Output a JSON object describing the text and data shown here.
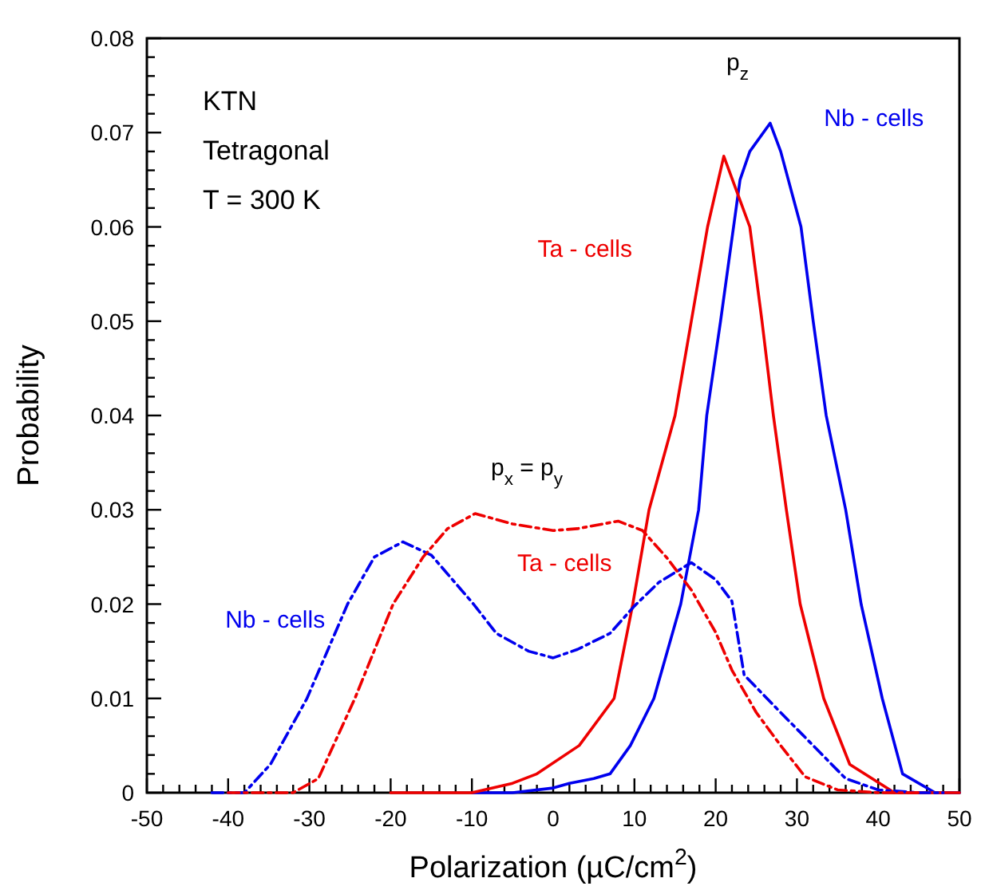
{
  "chart_data": {
    "type": "line",
    "xlabel": "Polarization (µC/cm$^{2}$)",
    "ylabel": "Probability",
    "xlim": [
      -50,
      50
    ],
    "ylim": [
      0,
      0.08
    ],
    "xticks": [
      -50,
      {
        "value": -48,
        "label": null
      },
      {
        "value": -46,
        "label": null
      },
      {
        "value": -44,
        "label": null
      },
      {
        "value": -42,
        "label": null
      },
      -40,
      {
        "value": -38,
        "label": null
      },
      {
        "value": -36,
        "label": null
      },
      {
        "value": -34,
        "label": null
      },
      {
        "value": -32,
        "label": null
      },
      -30,
      {
        "value": -28,
        "label": null
      },
      {
        "value": -26,
        "label": null
      },
      {
        "value": -24,
        "label": null
      },
      {
        "value": -22,
        "label": null
      },
      -20,
      {
        "value": -18,
        "label": null
      },
      {
        "value": -16,
        "label": null
      },
      {
        "value": -14,
        "label": null
      },
      {
        "value": -12,
        "label": null
      },
      -10,
      {
        "value": -8,
        "label": null
      },
      {
        "value": -6,
        "label": null
      },
      {
        "value": -4,
        "label": null
      },
      {
        "value": -2,
        "label": null
      },
      0,
      {
        "value": 2,
        "label": null
      },
      {
        "value": 4,
        "label": null
      },
      {
        "value": 6,
        "label": null
      },
      {
        "value": 8,
        "label": null
      },
      10,
      {
        "value": 12,
        "label": null
      },
      {
        "value": 14,
        "label": null
      },
      {
        "value": 16,
        "label": null
      },
      {
        "value": 18,
        "label": null
      },
      20,
      {
        "value": 22,
        "label": null
      },
      {
        "value": 24,
        "label": null
      },
      {
        "value": 26,
        "label": null
      },
      {
        "value": 28,
        "label": null
      },
      30,
      {
        "value": 32,
        "label": null
      },
      {
        "value": 34,
        "label": null
      },
      {
        "value": 36,
        "label": null
      },
      {
        "value": 38,
        "label": null
      },
      40,
      {
        "value": 42,
        "label": null
      },
      {
        "value": 44,
        "label": null
      },
      {
        "value": 46,
        "label": null
      },
      {
        "value": 48,
        "label": null
      },
      50
    ],
    "yticks": [
      0,
      {
        "value": 0.002,
        "label": null
      },
      {
        "value": 0.004,
        "label": null
      },
      {
        "value": 0.006,
        "label": null
      },
      {
        "value": 0.008,
        "label": null
      },
      0.01,
      {
        "value": 0.012,
        "label": null
      },
      {
        "value": 0.014,
        "label": null
      },
      {
        "value": 0.016,
        "label": null
      },
      {
        "value": 0.018,
        "label": null
      },
      0.02,
      {
        "value": 0.022,
        "label": null
      },
      {
        "value": 0.024,
        "label": null
      },
      {
        "value": 0.026,
        "label": null
      },
      {
        "value": 0.028,
        "label": null
      },
      0.03,
      {
        "value": 0.032,
        "label": null
      },
      {
        "value": 0.034,
        "label": null
      },
      {
        "value": 0.036,
        "label": null
      },
      {
        "value": 0.038,
        "label": null
      },
      0.04,
      {
        "value": 0.042,
        "label": null
      },
      {
        "value": 0.044,
        "label": null
      },
      {
        "value": 0.046,
        "label": null
      },
      {
        "value": 0.048,
        "label": null
      },
      0.05,
      {
        "value": 0.052,
        "label": null
      },
      {
        "value": 0.054,
        "label": null
      },
      {
        "value": 0.056,
        "label": null
      },
      {
        "value": 0.058,
        "label": null
      },
      0.06,
      {
        "value": 0.062,
        "label": null
      },
      {
        "value": 0.064,
        "label": null
      },
      {
        "value": 0.066,
        "label": null
      },
      {
        "value": 0.068,
        "label": null
      },
      0.07,
      {
        "value": 0.072,
        "label": null
      },
      {
        "value": 0.074,
        "label": null
      },
      {
        "value": 0.076,
        "label": null
      },
      {
        "value": 0.078,
        "label": null
      },
      0.08
    ],
    "grid": false,
    "marker": "none",
    "series": [
      {
        "name": "Nb - cells",
        "color": "#0000ee",
        "line_style": "solid",
        "x": [
          -10,
          -5,
          0,
          2,
          5,
          7,
          9.5,
          12.4,
          15.7,
          17.9,
          18.9,
          20.6,
          22.2,
          23,
          24.2,
          26.7,
          28,
          30.5,
          32,
          33.6,
          36,
          37.9,
          40.5,
          43,
          47,
          50
        ],
        "values": [
          0,
          0,
          0.0005,
          0.001,
          0.0015,
          0.002,
          0.005,
          0.01,
          0.02,
          0.03,
          0.04,
          0.05,
          0.06,
          0.065,
          0.068,
          0.071,
          0.068,
          0.06,
          0.05,
          0.04,
          0.03,
          0.02,
          0.01,
          0.002,
          0,
          0
        ]
      },
      {
        "name": "Ta - cells",
        "color": "#ee0000",
        "line_style": "solid",
        "x": [
          -20,
          -10,
          -5,
          -2,
          3.2,
          7.5,
          9.8,
          11.8,
          15,
          17,
          19,
          21,
          24.2,
          25.7,
          27.1,
          28.7,
          30.4,
          33.3,
          36.5,
          42,
          50
        ],
        "values": [
          0,
          0,
          0.001,
          0.002,
          0.005,
          0.01,
          0.02,
          0.03,
          0.04,
          0.05,
          0.06,
          0.0675,
          0.06,
          0.05,
          0.04,
          0.03,
          0.02,
          0.01,
          0.003,
          0,
          0
        ]
      },
      {
        "name": "Nb - cells",
        "color": "#0000ee",
        "line_style": "dashed",
        "x": [
          -42,
          -38,
          -34.8,
          -30.3,
          -25.3,
          -22,
          -18.5,
          -15,
          -9.8,
          -7,
          -3,
          0,
          3,
          7,
          10,
          13,
          17,
          20,
          22,
          23.5,
          28,
          32,
          36,
          40,
          45,
          48
        ],
        "values": [
          0,
          0,
          0.003,
          0.01,
          0.02,
          0.025,
          0.0266,
          0.0252,
          0.02,
          0.0169,
          0.015,
          0.0143,
          0.0152,
          0.0169,
          0.0198,
          0.0223,
          0.0244,
          0.0226,
          0.0203,
          0.0125,
          0.0085,
          0.005,
          0.0015,
          0.0003,
          0,
          0
        ]
      },
      {
        "name": "Ta - cells",
        "color": "#ee0000",
        "line_style": "dashed",
        "x": [
          -40,
          -32,
          -28.9,
          -24.4,
          -19.7,
          -16,
          -13,
          -9.6,
          -5,
          0,
          3,
          8,
          11,
          14,
          17,
          20,
          22,
          25,
          28,
          31,
          35,
          40,
          45
        ],
        "values": [
          0,
          0,
          0.0015,
          0.01,
          0.02,
          0.025,
          0.028,
          0.0296,
          0.0285,
          0.0278,
          0.028,
          0.0288,
          0.0278,
          0.0249,
          0.0215,
          0.017,
          0.013,
          0.0085,
          0.005,
          0.0017,
          0.0003,
          0,
          0
        ]
      }
    ],
    "annotations": [
      "KTN",
      "Tetragonal",
      "T = 300 K",
      "p$_{z}$",
      "p$_{x}$ = p$_{y}$"
    ]
  }
}
